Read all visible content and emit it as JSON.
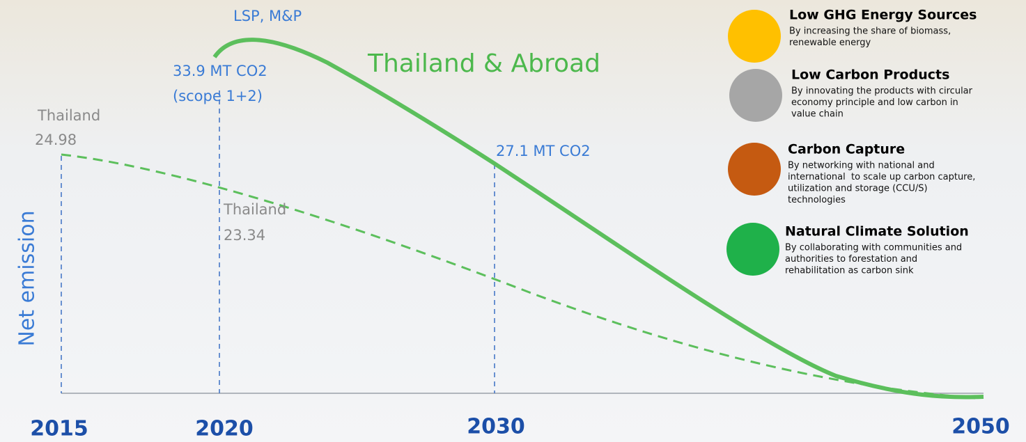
{
  "header": {
    "title": "Thailand & Abroad",
    "y_axis_label": "Net emission"
  },
  "years": [
    "2015",
    "2020",
    "2030",
    "2050"
  ],
  "annotations": {
    "scope_group": "LSP, M&P",
    "start_abroad": "33.9 MT CO2",
    "start_abroad_scope": "(scope 1+2)",
    "thailand_2015_label": "Thailand",
    "thailand_2015_value": "24.98",
    "thailand_2020_label": "Thailand",
    "thailand_2020_value": "23.34",
    "abroad_2030": "27.1 MT CO2"
  },
  "strategies": [
    {
      "title": "Low GHG Energy Sources",
      "lines": [
        "By increasing the share of biomass,",
        "renewable energy"
      ]
    },
    {
      "title": "Low Carbon Products",
      "lines": [
        "By innovating the products with circular",
        "economy principle and low carbon in",
        "value chain"
      ]
    },
    {
      "title": "Carbon Capture",
      "lines": [
        "By networking with national and",
        "international  to scale up carbon capture,",
        "utilization and storage (CCU/S)",
        "technologies"
      ]
    },
    {
      "title": "Natural Climate Solution",
      "lines": [
        "By collaborating with communities and",
        "authorities to forestation and",
        "rehabilitation as carbon sink"
      ]
    }
  ]
}
